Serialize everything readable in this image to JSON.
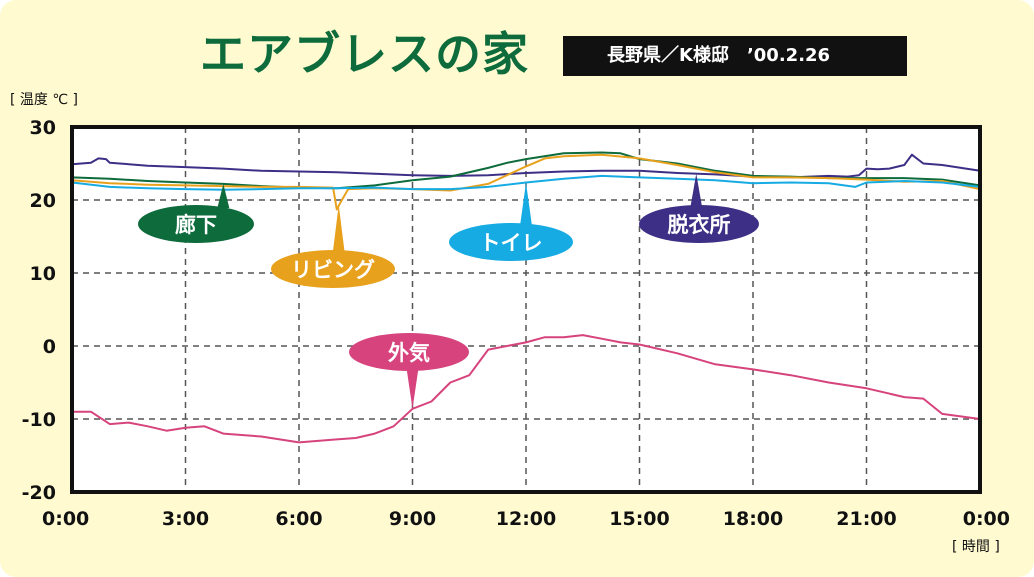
{
  "header": {
    "title": "エアブレスの家",
    "subtitle": "長野県／K様邸　’00.2.26"
  },
  "chart_data": {
    "type": "line",
    "title": "エアブレスの家",
    "subtitle": "長野県／K様邸　’00.2.26",
    "ylabel": "[ 温度 ℃ ]",
    "xlabel": "[ 時間 ]",
    "ylim": [
      -20,
      30
    ],
    "xlim": [
      0,
      24
    ],
    "y_ticks": [
      "30",
      "20",
      "10",
      "0",
      "-10",
      "-20"
    ],
    "y_tick_values": [
      30,
      20,
      10,
      0,
      -10,
      -20
    ],
    "x_ticks": [
      "0:00",
      "3:00",
      "6:00",
      "9:00",
      "12:00",
      "15:00",
      "18:00",
      "21:00",
      "0:00"
    ],
    "x_tick_values": [
      0,
      3,
      6,
      9,
      12,
      15,
      18,
      21,
      24
    ],
    "grid": true,
    "series": [
      {
        "name": "脱衣所",
        "color": "#3e2f86",
        "x": [
          0,
          0.5,
          0.7,
          0.9,
          1.0,
          1.5,
          2,
          3,
          4,
          5,
          6,
          7,
          8,
          9,
          10,
          11,
          12,
          13,
          14,
          15,
          16,
          17,
          18,
          19,
          20,
          20.5,
          20.8,
          21,
          21.3,
          21.6,
          22,
          22.2,
          22.5,
          23,
          23.5,
          24
        ],
        "y": [
          24.9,
          25.1,
          25.7,
          25.6,
          25.1,
          24.9,
          24.7,
          24.5,
          24.3,
          24.0,
          23.9,
          23.8,
          23.6,
          23.4,
          23.3,
          23.4,
          23.7,
          23.9,
          24.0,
          24.0,
          23.7,
          23.5,
          23.2,
          23.1,
          23.3,
          23.2,
          23.4,
          24.3,
          24.2,
          24.3,
          24.8,
          26.2,
          25.0,
          24.8,
          24.4,
          24.0
        ]
      },
      {
        "name": "廊下",
        "color": "#0d6b3c",
        "x": [
          0,
          1,
          2,
          3,
          4,
          5,
          6,
          7,
          8,
          9,
          10,
          11,
          11.5,
          12,
          13,
          14,
          14.5,
          15,
          16,
          17,
          18,
          19,
          20,
          21,
          22,
          23,
          24
        ],
        "y": [
          23.1,
          22.9,
          22.6,
          22.4,
          22.2,
          21.9,
          21.7,
          21.6,
          22.0,
          22.7,
          23.2,
          24.4,
          25.1,
          25.6,
          26.4,
          26.5,
          26.4,
          25.6,
          25.0,
          24.0,
          23.3,
          23.2,
          23.0,
          23.0,
          23.0,
          22.8,
          22.0
        ]
      },
      {
        "name": "リビング",
        "color": "#e8a11d",
        "x": [
          0,
          1,
          2,
          3,
          4,
          5,
          6,
          6.9,
          7.0,
          7.1,
          7.3,
          8,
          9,
          10,
          11,
          12,
          12.5,
          13,
          14,
          15,
          16,
          17,
          18,
          19,
          20,
          21,
          22,
          23,
          24
        ],
        "y": [
          22.7,
          22.3,
          22.1,
          22.0,
          21.9,
          21.8,
          21.8,
          21.7,
          18.7,
          19.7,
          21.5,
          21.6,
          21.5,
          21.3,
          22.2,
          24.6,
          25.7,
          26.0,
          26.2,
          25.7,
          24.8,
          23.8,
          23.1,
          23.1,
          23.0,
          22.8,
          22.5,
          22.6,
          21.5
        ]
      },
      {
        "name": "トイレ",
        "color": "#17abe3",
        "x": [
          0,
          1,
          2,
          3,
          4,
          5,
          6,
          7,
          8,
          9,
          10,
          11,
          12,
          13,
          14,
          15,
          16,
          17,
          18,
          19,
          20,
          20.7,
          21,
          22,
          23,
          24
        ],
        "y": [
          22.4,
          21.8,
          21.6,
          21.5,
          21.4,
          21.5,
          21.6,
          21.6,
          21.7,
          21.5,
          21.5,
          21.8,
          22.4,
          22.9,
          23.3,
          23.1,
          22.9,
          22.7,
          22.3,
          22.4,
          22.3,
          21.8,
          22.4,
          22.6,
          22.4,
          21.8
        ]
      },
      {
        "name": "外気",
        "color": "#d6437d",
        "x": [
          0,
          0.5,
          1,
          1.5,
          2,
          2.5,
          3,
          3.5,
          4,
          5,
          6,
          7,
          7.5,
          8,
          8.5,
          9,
          9.5,
          10,
          10.5,
          11,
          12,
          12.5,
          13,
          13.5,
          14,
          14.5,
          15,
          16,
          17,
          18,
          19,
          20,
          21,
          22,
          22.5,
          23,
          24
        ],
        "y": [
          -9.0,
          -9.0,
          -10.7,
          -10.5,
          -11.0,
          -11.6,
          -11.2,
          -11.0,
          -12.0,
          -12.4,
          -13.2,
          -12.8,
          -12.6,
          -12.0,
          -11.0,
          -8.6,
          -7.6,
          -5.0,
          -4.0,
          -0.5,
          0.5,
          1.2,
          1.2,
          1.5,
          1.0,
          0.5,
          0.2,
          -1.0,
          -2.5,
          -3.2,
          -4.0,
          -5.0,
          -5.8,
          -7.0,
          -7.2,
          -9.3,
          -10.0
        ]
      }
    ],
    "labels": [
      {
        "text": "廊下",
        "series": "廊下"
      },
      {
        "text": "リビング",
        "series": "リビング"
      },
      {
        "text": "トイレ",
        "series": "トイレ"
      },
      {
        "text": "脱衣所",
        "series": "脱衣所"
      },
      {
        "text": "外気",
        "series": "外気"
      }
    ]
  }
}
